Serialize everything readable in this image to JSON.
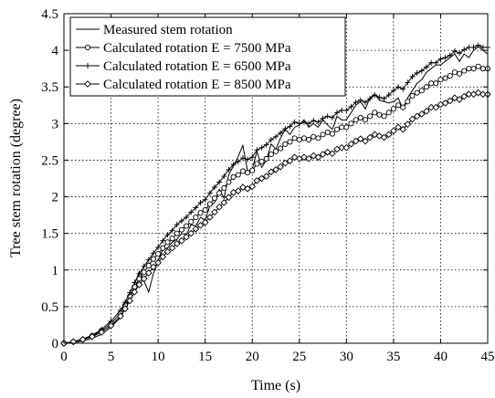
{
  "chart_data": {
    "type": "line",
    "xlabel": "Time (s)",
    "ylabel": "Tree stem rotation (degree)",
    "xlim": [
      0,
      45
    ],
    "ylim": [
      0,
      4.5
    ],
    "xticks": [
      0,
      5,
      10,
      15,
      20,
      25,
      30,
      35,
      40,
      45
    ],
    "yticks": [
      0,
      0.5,
      1,
      1.5,
      2,
      2.5,
      3,
      3.5,
      4,
      4.5
    ],
    "grid": true,
    "legend_position": "top-left",
    "series": [
      {
        "name": "Measured stem rotation",
        "marker": "none",
        "color": "#000000",
        "x": [
          0,
          1,
          2,
          3,
          4,
          5,
          6,
          6.5,
          7,
          7.5,
          8,
          8.5,
          9,
          9.5,
          10,
          10.5,
          11,
          11.5,
          12,
          12.5,
          13,
          13.5,
          14,
          14.5,
          15,
          15.5,
          16,
          16.5,
          17,
          17.5,
          18,
          18.5,
          19,
          19.5,
          20,
          20.5,
          21,
          21.5,
          22,
          22.5,
          23,
          23.5,
          24,
          24.5,
          25,
          25.5,
          26,
          26.5,
          27,
          27.5,
          28,
          28.5,
          29,
          29.5,
          30,
          30.5,
          31,
          31.5,
          32,
          32.5,
          33,
          33.5,
          34,
          34.5,
          35,
          35.5,
          36,
          36.5,
          37,
          37.5,
          38,
          38.5,
          39,
          39.5,
          40,
          40.5,
          41,
          41.5,
          42,
          42.5,
          43,
          43.5,
          44,
          44.5,
          45
        ],
        "y": [
          0,
          0.01,
          0.03,
          0.07,
          0.12,
          0.22,
          0.35,
          0.48,
          0.62,
          0.8,
          0.98,
          0.85,
          0.7,
          0.95,
          1.12,
          1.28,
          1.3,
          1.38,
          1.42,
          1.5,
          1.48,
          1.62,
          1.6,
          1.72,
          1.68,
          1.88,
          1.92,
          2.1,
          1.98,
          2.3,
          2.42,
          2.55,
          2.7,
          2.35,
          2.38,
          2.62,
          2.4,
          2.5,
          2.72,
          2.65,
          2.8,
          2.92,
          2.85,
          2.95,
          2.98,
          3.05,
          2.95,
          3.0,
          2.95,
          3.05,
          2.98,
          2.92,
          3.1,
          3.05,
          3.05,
          3.15,
          3.25,
          3.3,
          3.2,
          3.35,
          3.4,
          3.32,
          3.3,
          3.28,
          3.3,
          3.35,
          3.2,
          3.35,
          3.45,
          3.55,
          3.6,
          3.7,
          3.75,
          3.8,
          3.8,
          3.85,
          3.9,
          3.95,
          3.85,
          3.95,
          3.9,
          4.0,
          4.05,
          4.0,
          3.95
        ]
      },
      {
        "name": "Calculated rotation E = 7500 MPa",
        "marker": "circle",
        "color": "#000000",
        "x": [
          0,
          1,
          2,
          3,
          4,
          5,
          6,
          6.5,
          7,
          7.5,
          8,
          8.5,
          9,
          9.5,
          10,
          10.5,
          11,
          11.5,
          12,
          12.5,
          13,
          13.5,
          14,
          14.5,
          15,
          15.5,
          16,
          16.5,
          17,
          17.5,
          18,
          18.5,
          19,
          19.5,
          20,
          20.5,
          21,
          21.5,
          22,
          22.5,
          23,
          23.5,
          24,
          24.5,
          25,
          25.5,
          26,
          26.5,
          27,
          27.5,
          28,
          28.5,
          29,
          29.5,
          30,
          30.5,
          31,
          31.5,
          32,
          32.5,
          33,
          33.5,
          34,
          34.5,
          35,
          35.5,
          36,
          36.5,
          37,
          37.5,
          38,
          38.5,
          39,
          39.5,
          40,
          40.5,
          41,
          41.5,
          42,
          42.5,
          43,
          43.5,
          44,
          44.5,
          45
        ],
        "y": [
          0,
          0.02,
          0.05,
          0.1,
          0.17,
          0.27,
          0.41,
          0.52,
          0.64,
          0.77,
          0.88,
          0.97,
          1.06,
          1.15,
          1.22,
          1.3,
          1.38,
          1.43,
          1.5,
          1.55,
          1.6,
          1.66,
          1.72,
          1.78,
          1.82,
          1.9,
          1.98,
          2.05,
          2.12,
          2.2,
          2.27,
          2.3,
          2.35,
          2.33,
          2.36,
          2.45,
          2.48,
          2.52,
          2.58,
          2.62,
          2.66,
          2.72,
          2.75,
          2.8,
          2.78,
          2.8,
          2.78,
          2.82,
          2.8,
          2.85,
          2.88,
          2.86,
          2.92,
          2.95,
          2.95,
          3.0,
          3.05,
          3.08,
          3.05,
          3.1,
          3.15,
          3.12,
          3.1,
          3.15,
          3.2,
          3.25,
          3.22,
          3.3,
          3.38,
          3.42,
          3.45,
          3.5,
          3.55,
          3.55,
          3.6,
          3.62,
          3.65,
          3.7,
          3.68,
          3.72,
          3.75,
          3.75,
          3.78,
          3.75,
          3.75
        ]
      },
      {
        "name": "Calculated rotation E = 6500 MPa",
        "marker": "plus",
        "color": "#000000",
        "x": [
          0,
          1,
          2,
          3,
          4,
          5,
          6,
          6.5,
          7,
          7.5,
          8,
          8.5,
          9,
          9.5,
          10,
          10.5,
          11,
          11.5,
          12,
          12.5,
          13,
          13.5,
          14,
          14.5,
          15,
          15.5,
          16,
          16.5,
          17,
          17.5,
          18,
          18.5,
          19,
          19.5,
          20,
          20.5,
          21,
          21.5,
          22,
          22.5,
          23,
          23.5,
          24,
          24.5,
          25,
          25.5,
          26,
          26.5,
          27,
          27.5,
          28,
          28.5,
          29,
          29.5,
          30,
          30.5,
          31,
          31.5,
          32,
          32.5,
          33,
          33.5,
          34,
          34.5,
          35,
          35.5,
          36,
          36.5,
          37,
          37.5,
          38,
          38.5,
          39,
          39.5,
          40,
          40.5,
          41,
          41.5,
          42,
          42.5,
          43,
          43.5,
          44,
          44.5,
          45
        ],
        "y": [
          0,
          0.02,
          0.06,
          0.11,
          0.19,
          0.3,
          0.45,
          0.56,
          0.69,
          0.83,
          0.95,
          1.05,
          1.14,
          1.23,
          1.31,
          1.4,
          1.48,
          1.54,
          1.62,
          1.67,
          1.72,
          1.79,
          1.85,
          1.92,
          1.96,
          2.05,
          2.13,
          2.2,
          2.28,
          2.37,
          2.44,
          2.48,
          2.53,
          2.51,
          2.54,
          2.64,
          2.67,
          2.71,
          2.78,
          2.82,
          2.87,
          2.93,
          2.96,
          3.02,
          3.0,
          3.02,
          3.0,
          3.04,
          3.02,
          3.07,
          3.1,
          3.08,
          3.15,
          3.18,
          3.18,
          3.23,
          3.29,
          3.32,
          3.29,
          3.34,
          3.39,
          3.36,
          3.34,
          3.39,
          3.45,
          3.5,
          3.47,
          3.56,
          3.64,
          3.69,
          3.72,
          3.77,
          3.83,
          3.83,
          3.88,
          3.9,
          3.93,
          3.99,
          3.96,
          4.01,
          4.04,
          4.04,
          4.07,
          4.04,
          4.04
        ]
      },
      {
        "name": "Calculated rotation E = 8500 MPa",
        "marker": "diamond",
        "color": "#000000",
        "x": [
          0,
          1,
          2,
          3,
          4,
          5,
          6,
          6.5,
          7,
          7.5,
          8,
          8.5,
          9,
          9.5,
          10,
          10.5,
          11,
          11.5,
          12,
          12.5,
          13,
          13.5,
          14,
          14.5,
          15,
          15.5,
          16,
          16.5,
          17,
          17.5,
          18,
          18.5,
          19,
          19.5,
          20,
          20.5,
          21,
          21.5,
          22,
          22.5,
          23,
          23.5,
          24,
          24.5,
          25,
          25.5,
          26,
          26.5,
          27,
          27.5,
          28,
          28.5,
          29,
          29.5,
          30,
          30.5,
          31,
          31.5,
          32,
          32.5,
          33,
          33.5,
          34,
          34.5,
          35,
          35.5,
          36,
          36.5,
          37,
          37.5,
          38,
          38.5,
          39,
          39.5,
          40,
          40.5,
          41,
          41.5,
          42,
          42.5,
          43,
          43.5,
          44,
          44.5,
          45
        ],
        "y": [
          0,
          0.02,
          0.05,
          0.09,
          0.15,
          0.24,
          0.37,
          0.47,
          0.58,
          0.7,
          0.8,
          0.88,
          0.96,
          1.04,
          1.1,
          1.18,
          1.25,
          1.3,
          1.36,
          1.4,
          1.45,
          1.5,
          1.56,
          1.61,
          1.65,
          1.72,
          1.79,
          1.86,
          1.92,
          1.99,
          2.06,
          2.08,
          2.13,
          2.11,
          2.14,
          2.22,
          2.25,
          2.28,
          2.34,
          2.37,
          2.41,
          2.46,
          2.49,
          2.54,
          2.52,
          2.54,
          2.52,
          2.56,
          2.54,
          2.58,
          2.61,
          2.59,
          2.65,
          2.67,
          2.67,
          2.72,
          2.76,
          2.79,
          2.76,
          2.81,
          2.85,
          2.83,
          2.81,
          2.85,
          2.9,
          2.95,
          2.92,
          2.99,
          3.06,
          3.1,
          3.13,
          3.17,
          3.22,
          3.22,
          3.26,
          3.28,
          3.31,
          3.35,
          3.33,
          3.37,
          3.4,
          3.4,
          3.42,
          3.4,
          3.4
        ]
      }
    ]
  }
}
